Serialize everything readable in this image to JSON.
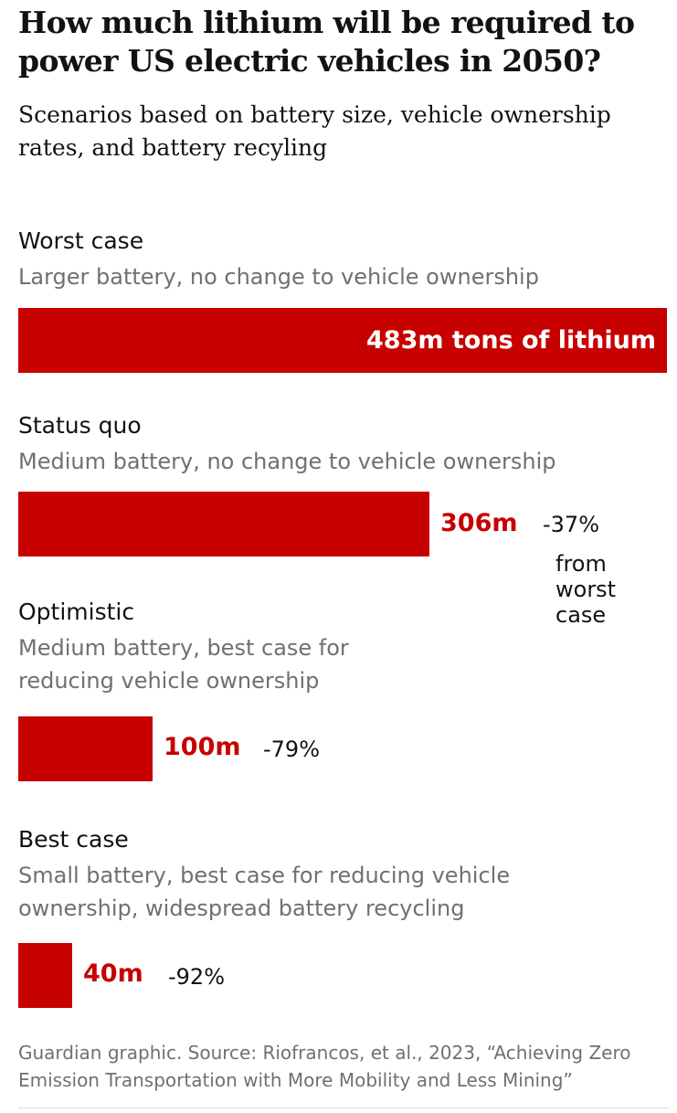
{
  "header": {
    "title": "How much lithium will be required to power US electric vehicles in 2050?",
    "subtitle": "Scenarios based on battery size, vehicle ownership rates, and battery recyling"
  },
  "chart_data": {
    "type": "bar",
    "orientation": "horizontal",
    "title": "How much lithium will be required to power US electric vehicles in 2050?",
    "subtitle": "Scenarios based on battery size, vehicle ownership rates, and battery recyling",
    "unit": "m tons of lithium",
    "categories": [
      "Worst case",
      "Status quo",
      "Optimistic",
      "Best case"
    ],
    "descriptions": [
      "Larger battery, no change to vehicle ownership",
      "Medium battery, no change to vehicle ownership",
      "Medium battery, best case for reducing vehicle ownership",
      "Small battery, best case for reducing vehicle ownership, widespread battery recycling"
    ],
    "values": [
      483,
      306,
      100,
      40
    ],
    "value_labels": [
      "483m tons of lithium",
      "306m",
      "100m",
      "40m"
    ],
    "change_labels": [
      "",
      "-37%",
      "-79%",
      "-92%"
    ],
    "change_note": "from worst case",
    "xlim": [
      0,
      483
    ],
    "grid": false,
    "bar_color": "#c70000"
  },
  "footer": {
    "source": "Guardian graphic. Source: Riofrancos, et al., 2023, “Achieving Zero Emission Transportation with More Mobility and Less Mining”"
  }
}
